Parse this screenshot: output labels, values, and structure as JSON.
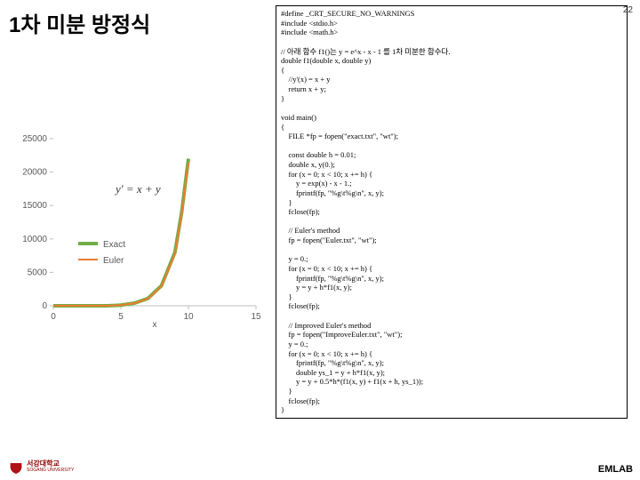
{
  "title": "1차 미분 방정식",
  "page_number": "22",
  "footer_label": "EMLAB",
  "logo": {
    "line1": "서강대학교",
    "line2": "SOGANG UNIVERSITY",
    "shield_color": "#b01116"
  },
  "formula": "y′ = x + y",
  "code": "#define _CRT_SECURE_NO_WARNINGS\n#include <stdio.h>\n#include <math.h>\n\n// 아래 함수 f1()는 y = e^x - x - 1 를 1차 미분한 함수다.\ndouble f1(double x, double y)\n{\n    //y'(x) = x + y\n    return x + y;\n}\n\nvoid main()\n{\n    FILE *fp = fopen(\"exact.txt\", \"wt\");\n\n    const double h = 0.01;\n    double x, y(0.);\n    for (x = 0; x < 10; x += h) {\n        y = exp(x) - x - 1.;\n        fprintf(fp, \"%g\\t%g\\n\", x, y);\n    }\n    fclose(fp);\n\n    // Euler's method\n    fp = fopen(\"Euler.txt\", \"wt\");\n\n    y = 0.;\n    for (x = 0; x < 10; x += h) {\n        fprintf(fp, \"%g\\t%g\\n\", x, y);\n        y = y + h*f1(x, y);\n    }\n    fclose(fp);\n\n    // Improved Euler's method\n    fp = fopen(\"ImproveEuler.txt\", \"wt\");\n    y = 0.;\n    for (x = 0; x < 10; x += h) {\n        fprintf(fp, \"%g\\t%g\\n\", x, y);\n        double ys_1 = y + h*f1(x, y);\n        y = y + 0.5*h*(f1(x, y) + f1(x + h, ys_1));\n    }\n    fclose(fp);\n}",
  "chart": {
    "type": "line",
    "x_axis_label": "x",
    "x_ticks": [
      "0",
      "5",
      "10",
      "15"
    ],
    "y_ticks": [
      "0",
      "5000",
      "10000",
      "15000",
      "20000",
      "25000"
    ],
    "xlim": [
      0,
      15
    ],
    "ylim": [
      0,
      25000
    ],
    "legend": [
      "Exact",
      "Euler"
    ],
    "legend_colors": [
      "#70ad47",
      "#ed7d31"
    ],
    "background_color": "#ffffff",
    "axis_color": "#bfbfbf",
    "text_color": "#595959",
    "tick_fontsize": 10,
    "line_width_exact": 4,
    "line_width_euler": 2,
    "series_exact": [
      [
        0,
        0
      ],
      [
        1,
        0
      ],
      [
        2,
        0
      ],
      [
        3,
        0
      ],
      [
        4,
        0
      ],
      [
        5,
        100
      ],
      [
        6,
        400
      ],
      [
        7,
        1100
      ],
      [
        8,
        3000
      ],
      [
        9,
        8000
      ],
      [
        9.5,
        14000
      ],
      [
        10,
        22000
      ]
    ],
    "series_euler": [
      [
        0,
        0
      ],
      [
        1,
        0
      ],
      [
        2,
        0
      ],
      [
        3,
        0
      ],
      [
        4,
        0
      ],
      [
        5,
        95
      ],
      [
        6,
        380
      ],
      [
        7,
        1050
      ],
      [
        8,
        2900
      ],
      [
        9,
        7800
      ],
      [
        9.5,
        13700
      ],
      [
        10,
        21500
      ]
    ]
  }
}
